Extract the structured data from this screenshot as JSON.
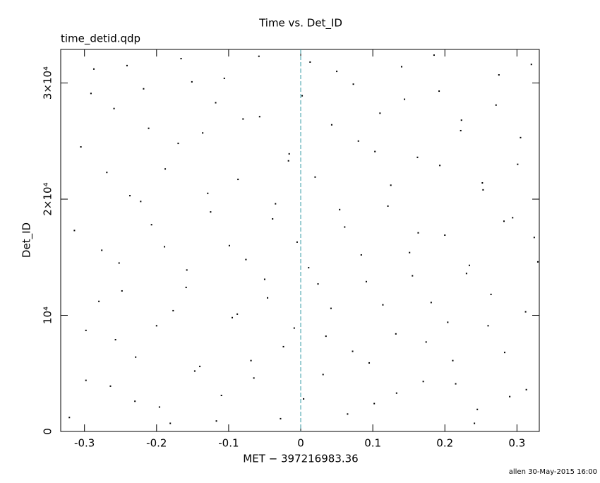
{
  "chart_data": {
    "type": "scatter",
    "title": "Time vs. Det_ID",
    "subtitle": "time_detid.qdp",
    "xlabel": "MET − 397216983.36",
    "ylabel": "Det_ID",
    "footer": "allen 30-May-2015 16:00",
    "xlim": [
      -0.333,
      0.331
    ],
    "ylim": [
      0,
      32890
    ],
    "xticks": [
      -0.3,
      -0.2,
      -0.1,
      0,
      0.1,
      0.2,
      0.3
    ],
    "yticks": [
      0,
      {
        "value": 10000,
        "label": "10⁴"
      },
      {
        "value": 20000,
        "label": "2×10⁴"
      },
      {
        "value": 30000,
        "label": "3×10⁴"
      }
    ],
    "vline": 0,
    "vline_color": "#3a9fa8",
    "color": "#000000",
    "series": [
      {
        "x": [
          -0.321,
          -0.305,
          -0.298,
          -0.287,
          -0.276,
          -0.264,
          -0.259,
          -0.248,
          -0.237,
          -0.229,
          -0.218,
          -0.207,
          -0.196,
          -0.188,
          -0.177,
          -0.166,
          -0.158,
          -0.147,
          -0.136,
          -0.125,
          -0.117,
          -0.106,
          -0.095,
          -0.087,
          -0.076,
          -0.065,
          -0.057,
          -0.046,
          -0.035,
          -0.024,
          -0.016,
          -0.005,
          0.004,
          0.013,
          0.024,
          0.035,
          0.043,
          0.054,
          0.065,
          0.073,
          0.084,
          0.095,
          0.103,
          0.114,
          0.125,
          0.133,
          0.144,
          0.155,
          0.163,
          0.174,
          0.185,
          0.193,
          0.204,
          0.215,
          0.223,
          0.234,
          0.245,
          0.253,
          0.264,
          0.275,
          0.283,
          0.294,
          0.305,
          0.313,
          0.324,
          -0.314,
          -0.298,
          -0.291,
          -0.28,
          -0.269,
          -0.257,
          -0.252,
          -0.241,
          -0.23,
          -0.222,
          -0.211,
          -0.2,
          -0.189,
          -0.181,
          -0.17,
          -0.159,
          -0.151,
          -0.14,
          -0.129,
          -0.118,
          -0.11,
          -0.099,
          -0.088,
          -0.08,
          -0.069,
          -0.058,
          -0.05,
          -0.039,
          -0.028,
          -0.017,
          -0.009,
          0.002,
          0.011,
          0.02,
          0.031,
          0.042,
          0.05,
          0.061,
          0.072,
          0.08,
          0.091,
          0.102,
          0.11,
          0.121,
          0.132,
          0.14,
          0.151,
          0.162,
          0.17,
          0.181,
          0.192,
          0.2,
          0.211,
          0.222,
          0.23,
          0.241,
          0.252,
          0.26,
          0.271,
          0.282,
          0.29,
          0.301,
          0.312,
          0.32,
          0.329
        ],
        "values": [
          1200,
          24500,
          8700,
          31200,
          15600,
          3900,
          27800,
          12100,
          20300,
          6400,
          29500,
          17800,
          2100,
          22600,
          10400,
          32100,
          13900,
          5200,
          25700,
          18900,
          900,
          30400,
          9800,
          21700,
          14800,
          4600,
          27100,
          11500,
          19600,
          7300,
          23900,
          16300,
          2800,
          31800,
          12700,
          8200,
          26400,
          19100,
          1500,
          29900,
          15200,
          5900,
          24100,
          10900,
          21200,
          3300,
          28600,
          13400,
          17100,
          7700,
          32400,
          22900,
          9400,
          4100,
          26800,
          14300,
          1900,
          20800,
          11800,
          30700,
          6800,
          18400,
          25300,
          3600,
          16700,
          17300,
          4400,
          29100,
          11200,
          22300,
          7900,
          14500,
          31500,
          2600,
          19800,
          26100,
          9100,
          15900,
          700,
          24800,
          12400,
          30100,
          5600,
          20500,
          28300,
          3100,
          16000,
          10100,
          26900,
          6100,
          32300,
          13100,
          18300,
          1100,
          23300,
          8900,
          28900,
          14100,
          21900,
          4900,
          10600,
          31000,
          17600,
          6900,
          25000,
          12900,
          2400,
          27400,
          19400,
          8400,
          31400,
          15400,
          23600,
          4300,
          11100,
          29300,
          16900,
          6100,
          25900,
          13600,
          700,
          21400,
          9100,
          28100,
          18100,
          3000,
          23000,
          10300,
          31600,
          14600
        ]
      }
    ]
  }
}
